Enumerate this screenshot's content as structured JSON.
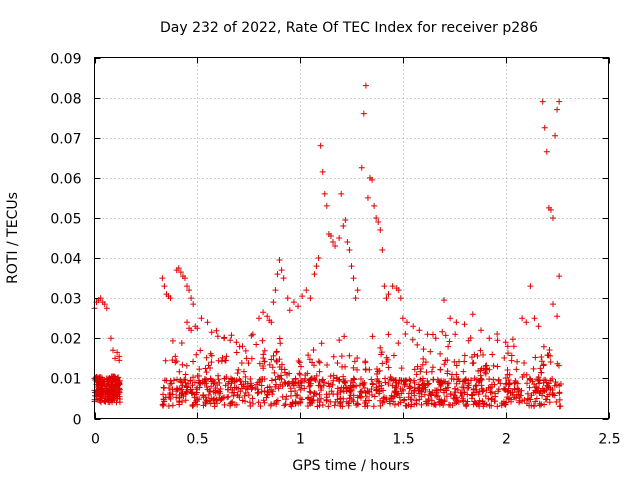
{
  "chart_data": {
    "type": "scatter",
    "title": "Day 232 of 2022, Rate Of TEC Index for receiver p286",
    "xlabel": "GPS time / hours",
    "ylabel": "ROTI / TECUs",
    "xlim": [
      0,
      2.5
    ],
    "ylim": [
      0,
      0.09
    ],
    "xticks": [
      0,
      0.5,
      1,
      1.5,
      2,
      2.5
    ],
    "xtick_labels": [
      "0",
      "0.5",
      "1",
      "1.5",
      "2",
      "2.5"
    ],
    "yticks": [
      0,
      0.01,
      0.02,
      0.03,
      0.04,
      0.05,
      0.06,
      0.07,
      0.08,
      0.09
    ],
    "ytick_labels": [
      "0",
      "0.01",
      "0.02",
      "0.03",
      "0.04",
      "0.05",
      "0.06",
      "0.07",
      "0.08",
      "0.09"
    ],
    "grid": true,
    "marker": "+",
    "color": "#e00000",
    "series": [
      {
        "name": "ROTI",
        "points": [
          [
            0.0,
            0.0275
          ],
          [
            0.01,
            0.029
          ],
          [
            0.02,
            0.0295
          ],
          [
            0.03,
            0.03
          ],
          [
            0.04,
            0.029
          ],
          [
            0.05,
            0.0285
          ],
          [
            0.06,
            0.0275
          ],
          [
            0.0,
            0.01
          ],
          [
            0.0,
            0.007
          ],
          [
            0.01,
            0.0055
          ],
          [
            0.01,
            0.0085
          ],
          [
            0.02,
            0.006
          ],
          [
            0.02,
            0.0095
          ],
          [
            0.03,
            0.005
          ],
          [
            0.03,
            0.0075
          ],
          [
            0.04,
            0.0065
          ],
          [
            0.04,
            0.009
          ],
          [
            0.05,
            0.0045
          ],
          [
            0.05,
            0.008
          ],
          [
            0.06,
            0.007
          ],
          [
            0.06,
            0.01
          ],
          [
            0.07,
            0.0055
          ],
          [
            0.07,
            0.0085
          ],
          [
            0.08,
            0.0065
          ],
          [
            0.08,
            0.0095
          ],
          [
            0.09,
            0.005
          ],
          [
            0.09,
            0.008
          ],
          [
            0.1,
            0.007
          ],
          [
            0.1,
            0.0095
          ],
          [
            0.11,
            0.006
          ],
          [
            0.11,
            0.0085
          ],
          [
            0.12,
            0.0075
          ],
          [
            0.12,
            0.009
          ],
          [
            0.08,
            0.02
          ],
          [
            0.09,
            0.017
          ],
          [
            0.1,
            0.015
          ],
          [
            0.11,
            0.0165
          ],
          [
            0.12,
            0.0145
          ],
          [
            0.12,
            0.0155
          ],
          [
            0.33,
            0.035
          ],
          [
            0.34,
            0.033
          ],
          [
            0.35,
            0.031
          ],
          [
            0.36,
            0.0305
          ],
          [
            0.37,
            0.03
          ],
          [
            0.4,
            0.037
          ],
          [
            0.41,
            0.0375
          ],
          [
            0.42,
            0.0365
          ],
          [
            0.43,
            0.0355
          ],
          [
            0.44,
            0.035
          ],
          [
            0.45,
            0.033
          ],
          [
            0.46,
            0.032
          ],
          [
            0.47,
            0.03
          ],
          [
            0.48,
            0.0285
          ],
          [
            0.45,
            0.024
          ],
          [
            0.46,
            0.0225
          ],
          [
            0.47,
            0.022
          ],
          [
            0.49,
            0.023
          ],
          [
            0.5,
            0.0225
          ],
          [
            0.52,
            0.025
          ],
          [
            0.55,
            0.024
          ],
          [
            0.57,
            0.0215
          ],
          [
            0.6,
            0.0205
          ],
          [
            0.63,
            0.02
          ],
          [
            0.66,
            0.0195
          ],
          [
            0.69,
            0.019
          ],
          [
            0.72,
            0.018
          ],
          [
            0.74,
            0.015
          ],
          [
            0.77,
            0.021
          ],
          [
            0.8,
            0.025
          ],
          [
            0.82,
            0.0265
          ],
          [
            0.84,
            0.0255
          ],
          [
            0.85,
            0.0245
          ],
          [
            0.86,
            0.024
          ],
          [
            0.87,
            0.029
          ],
          [
            0.88,
            0.032
          ],
          [
            0.89,
            0.036
          ],
          [
            0.9,
            0.0395
          ],
          [
            0.91,
            0.037
          ],
          [
            0.92,
            0.035
          ],
          [
            0.94,
            0.03
          ],
          [
            0.95,
            0.027
          ],
          [
            0.97,
            0.029
          ],
          [
            0.99,
            0.028
          ],
          [
            1.01,
            0.0305
          ],
          [
            1.03,
            0.032
          ],
          [
            1.05,
            0.03
          ],
          [
            1.07,
            0.036
          ],
          [
            1.08,
            0.038
          ],
          [
            1.09,
            0.04
          ],
          [
            1.1,
            0.068
          ],
          [
            1.11,
            0.0615
          ],
          [
            1.12,
            0.056
          ],
          [
            1.13,
            0.053
          ],
          [
            1.14,
            0.046
          ],
          [
            1.15,
            0.0455
          ],
          [
            1.16,
            0.044
          ],
          [
            1.17,
            0.043
          ],
          [
            1.19,
            0.045
          ],
          [
            1.2,
            0.056
          ],
          [
            1.21,
            0.048
          ],
          [
            1.22,
            0.0495
          ],
          [
            1.23,
            0.044
          ],
          [
            1.24,
            0.042
          ],
          [
            1.25,
            0.038
          ],
          [
            1.26,
            0.035
          ],
          [
            1.27,
            0.03
          ],
          [
            1.28,
            0.032
          ],
          [
            1.3,
            0.0625
          ],
          [
            1.31,
            0.076
          ],
          [
            1.32,
            0.083
          ],
          [
            1.33,
            0.055
          ],
          [
            1.34,
            0.06
          ],
          [
            1.35,
            0.0595
          ],
          [
            1.36,
            0.053
          ],
          [
            1.37,
            0.05
          ],
          [
            1.38,
            0.049
          ],
          [
            1.39,
            0.047
          ],
          [
            1.4,
            0.042
          ],
          [
            1.41,
            0.033
          ],
          [
            1.42,
            0.03
          ],
          [
            1.43,
            0.031
          ],
          [
            1.45,
            0.033
          ],
          [
            1.47,
            0.0325
          ],
          [
            1.48,
            0.032
          ],
          [
            1.49,
            0.03
          ],
          [
            1.5,
            0.025
          ],
          [
            1.52,
            0.024
          ],
          [
            1.55,
            0.023
          ],
          [
            1.58,
            0.022
          ],
          [
            1.62,
            0.021
          ],
          [
            1.66,
            0.02
          ],
          [
            1.7,
            0.0295
          ],
          [
            1.73,
            0.025
          ],
          [
            1.76,
            0.024
          ],
          [
            1.8,
            0.0235
          ],
          [
            1.84,
            0.026
          ],
          [
            1.88,
            0.022
          ],
          [
            1.92,
            0.02
          ],
          [
            1.96,
            0.0195
          ],
          [
            2.0,
            0.019
          ],
          [
            2.04,
            0.018
          ],
          [
            2.08,
            0.025
          ],
          [
            2.1,
            0.024
          ],
          [
            2.12,
            0.033
          ],
          [
            2.14,
            0.025
          ],
          [
            2.16,
            0.023
          ],
          [
            2.18,
            0.079
          ],
          [
            2.19,
            0.0725
          ],
          [
            2.2,
            0.0665
          ],
          [
            2.21,
            0.0525
          ],
          [
            2.22,
            0.052
          ],
          [
            2.23,
            0.05
          ],
          [
            2.23,
            0.0285
          ],
          [
            2.24,
            0.0705
          ],
          [
            2.25,
            0.077
          ],
          [
            2.26,
            0.079
          ],
          [
            2.26,
            0.0355
          ],
          [
            2.25,
            0.0255
          ]
        ]
      }
    ]
  }
}
